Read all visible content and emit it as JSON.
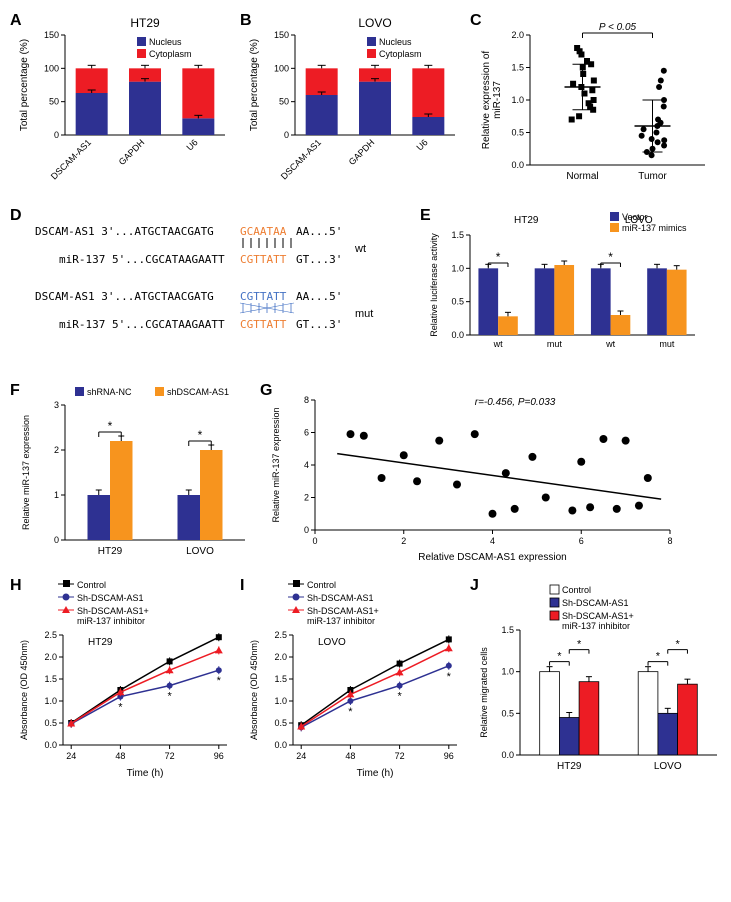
{
  "panelA": {
    "title": "HT29",
    "ylabel": "Total percentage (%)",
    "ylim": [
      0,
      150
    ],
    "ytick_step": 50,
    "categories": [
      "DSCAM-AS1",
      "GAPDH",
      "U6"
    ],
    "nucleus_values": [
      63,
      80,
      25
    ],
    "cytoplasm_values": [
      37,
      20,
      75
    ],
    "nucleus_color": "#2e3192",
    "cytoplasm_color": "#ed1c24",
    "legend": [
      "Nucleus",
      "Cytoplasm"
    ],
    "bar_width": 0.6
  },
  "panelB": {
    "title": "LOVO",
    "ylabel": "Total percentage (%)",
    "ylim": [
      0,
      150
    ],
    "ytick_step": 50,
    "categories": [
      "DSCAM-AS1",
      "GAPDH",
      "U6"
    ],
    "nucleus_values": [
      60,
      80,
      27
    ],
    "cytoplasm_values": [
      40,
      20,
      73
    ],
    "nucleus_color": "#2e3192",
    "cytoplasm_color": "#ed1c24",
    "legend": [
      "Nucleus",
      "Cytoplasm"
    ],
    "bar_width": 0.6
  },
  "panelC": {
    "ylabel": "Relative expression of\nmiR-137",
    "ylim": [
      0.0,
      2.0
    ],
    "ytick": [
      0.0,
      0.5,
      1.0,
      1.5,
      2.0
    ],
    "categories": [
      "Normal",
      "Tumor"
    ],
    "pvalue_text": "P < 0.05",
    "normal_mean": 1.2,
    "normal_sd": 0.35,
    "tumor_mean": 0.6,
    "tumor_sd": 0.4,
    "normal_points": [
      0.7,
      0.75,
      0.85,
      0.9,
      0.95,
      1.0,
      1.1,
      1.15,
      1.2,
      1.25,
      1.3,
      1.4,
      1.5,
      1.55,
      1.6,
      1.7,
      1.75,
      1.8
    ],
    "tumor_points": [
      0.15,
      0.2,
      0.25,
      0.3,
      0.35,
      0.38,
      0.4,
      0.45,
      0.5,
      0.55,
      0.6,
      0.65,
      0.7,
      0.9,
      1.0,
      1.2,
      1.3,
      1.45
    ],
    "normal_marker": "square",
    "tumor_marker": "circle",
    "marker_color": "#000000"
  },
  "panelD": {
    "dscam_seq_wt": "DSCAM-AS1  3'...ATGCTAACGATG",
    "dscam_highlight_wt": "GCAATAA",
    "dscam_end_wt": "AA...5'",
    "mir_seq": "miR-137  5'...CGCATAAGAATT",
    "mir_highlight": "CGTTATT",
    "mir_end": "GT...3'",
    "wt_label": "wt",
    "dscam_seq_mut": "DSCAM-AS1  3'...ATGCTAACGATG",
    "dscam_highlight_mut": "CGTTATT",
    "dscam_end_mut": "AA...5'",
    "mut_label": "mut",
    "highlight_color_wt": "#ed7d31",
    "highlight_color_mut": "#4472c4"
  },
  "panelE": {
    "ylabel": "Relative luciferase activity",
    "ylim": [
      0.0,
      1.5
    ],
    "ytick": [
      0.0,
      0.5,
      1.0,
      1.5
    ],
    "groups": [
      "HT29",
      "LOVO"
    ],
    "inner": [
      "wt",
      "mut",
      "wt",
      "mut"
    ],
    "vector_values": [
      1.0,
      1.0,
      1.0,
      1.0
    ],
    "mimics_values": [
      0.28,
      1.05,
      0.3,
      0.98
    ],
    "vector_color": "#2e3192",
    "mimics_color": "#f7941e",
    "legend": [
      "Vector",
      "miR-137 mimics"
    ],
    "sig_pairs": [
      [
        0,
        1
      ],
      [
        4,
        5
      ]
    ],
    "sig_label": "*"
  },
  "panelF": {
    "ylabel": "Relative miR-137 expression",
    "ylim": [
      0,
      3
    ],
    "ytick_step": 1,
    "categories": [
      "HT29",
      "LOVO"
    ],
    "nc_values": [
      1.0,
      1.0
    ],
    "sh_values": [
      2.2,
      2.0
    ],
    "nc_color": "#2e3192",
    "sh_color": "#f7941e",
    "legend": [
      "shRNA-NC",
      "shDSCAM-AS1"
    ],
    "sig_label": "*"
  },
  "panelG": {
    "xlabel": "Relative DSCAM-AS1 expression",
    "ylabel": "Relative miR-137 expression",
    "xlim": [
      0,
      8
    ],
    "ylim": [
      0,
      8
    ],
    "xtick_step": 2,
    "ytick_step": 2,
    "corr_text": "r=-0.456, P=0.033",
    "points": [
      [
        0.8,
        5.9
      ],
      [
        1.1,
        5.8
      ],
      [
        1.5,
        3.2
      ],
      [
        2.0,
        4.6
      ],
      [
        2.3,
        3.0
      ],
      [
        2.8,
        5.5
      ],
      [
        3.2,
        2.8
      ],
      [
        3.6,
        5.9
      ],
      [
        4.0,
        1.0
      ],
      [
        4.3,
        3.5
      ],
      [
        4.5,
        1.3
      ],
      [
        4.9,
        4.5
      ],
      [
        5.2,
        2.0
      ],
      [
        5.8,
        1.2
      ],
      [
        6.0,
        4.2
      ],
      [
        6.2,
        1.4
      ],
      [
        6.5,
        5.6
      ],
      [
        6.8,
        1.3
      ],
      [
        7.0,
        5.5
      ],
      [
        7.3,
        1.5
      ],
      [
        7.5,
        3.2
      ]
    ],
    "trend_start": [
      0.5,
      4.7
    ],
    "trend_end": [
      7.8,
      1.9
    ],
    "marker_color": "#000000"
  },
  "panelH": {
    "title": "HT29",
    "ylabel": "Absorbance (OD 450nm)",
    "xlabel": "Time (h)",
    "ylim": [
      0.0,
      2.5
    ],
    "ytick": [
      0.0,
      0.5,
      1.0,
      1.5,
      2.0,
      2.5
    ],
    "xticks": [
      24,
      48,
      72,
      96
    ],
    "series": [
      {
        "name": "Control",
        "color": "#000000",
        "marker": "square",
        "values": [
          0.5,
          1.25,
          1.9,
          2.45
        ]
      },
      {
        "name": "Sh-DSCAM-AS1",
        "color": "#2e3192",
        "marker": "circle",
        "values": [
          0.48,
          1.1,
          1.35,
          1.7
        ]
      },
      {
        "name": "Sh-DSCAM-AS1+\nmiR-137 inhibitor",
        "color": "#ed1c24",
        "marker": "triangle",
        "values": [
          0.49,
          1.2,
          1.7,
          2.15
        ]
      }
    ],
    "sig_label": "*"
  },
  "panelI": {
    "title": "LOVO",
    "ylabel": "Absorbance (OD 450nm)",
    "xlabel": "Time (h)",
    "ylim": [
      0.0,
      2.5
    ],
    "ytick": [
      0.0,
      0.5,
      1.0,
      1.5,
      2.0,
      2.5
    ],
    "xticks": [
      24,
      48,
      72,
      96
    ],
    "series": [
      {
        "name": "Control",
        "color": "#000000",
        "marker": "square",
        "values": [
          0.45,
          1.25,
          1.85,
          2.4
        ]
      },
      {
        "name": "Sh-DSCAM-AS1",
        "color": "#2e3192",
        "marker": "circle",
        "values": [
          0.4,
          1.0,
          1.35,
          1.8
        ]
      },
      {
        "name": "Sh-DSCAM-AS1+\nmiR-137 inhibitor",
        "color": "#ed1c24",
        "marker": "triangle",
        "values": [
          0.42,
          1.15,
          1.65,
          2.2
        ]
      }
    ],
    "sig_label": "*"
  },
  "panelJ": {
    "ylabel": "Relative migrated cells",
    "ylim": [
      0.0,
      1.5
    ],
    "ytick": [
      0.0,
      0.5,
      1.0,
      1.5
    ],
    "categories": [
      "HT29",
      "LOVO"
    ],
    "control_values": [
      1.0,
      1.0
    ],
    "sh_values": [
      0.45,
      0.5
    ],
    "inh_values": [
      0.88,
      0.85
    ],
    "control_color": "#ffffff",
    "sh_color": "#2e3192",
    "inh_color": "#ed1c24",
    "legend": [
      "Control",
      "Sh-DSCAM-AS1",
      "Sh-DSCAM-AS1+\nmiR-137 inhibitor"
    ],
    "sig_label": "*"
  }
}
